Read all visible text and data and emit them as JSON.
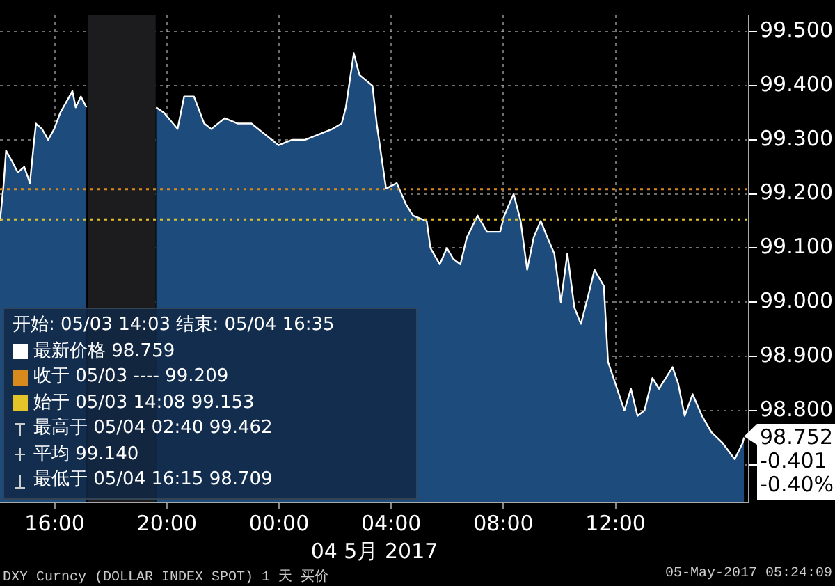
{
  "chart_data": {
    "type": "area",
    "xlabel": "04 5月 2017",
    "x": [
      "2017-05-03T14:03",
      "2017-05-03T14:11",
      "2017-05-03T14:16",
      "2017-05-03T14:29",
      "2017-05-03T14:41",
      "2017-05-03T14:55",
      "2017-05-03T15:07",
      "2017-05-03T15:15",
      "2017-05-03T15:20",
      "2017-05-03T15:33",
      "2017-05-03T15:46",
      "2017-05-03T15:59",
      "2017-05-03T16:12",
      "2017-05-03T16:25",
      "2017-05-03T16:38",
      "2017-05-03T16:45",
      "2017-05-03T16:56",
      "2017-05-03T17:08",
      "2017-05-03T18:00",
      "2017-05-03T19:37",
      "2017-05-03T19:54",
      "2017-05-03T20:23",
      "2017-05-03T20:37",
      "2017-05-03T20:58",
      "2017-05-03T21:20",
      "2017-05-03T21:35",
      "2017-05-03T22:04",
      "2017-05-03T22:32",
      "2017-05-03T23:01",
      "2017-05-03T23:30",
      "2017-05-03T23:59",
      "2017-05-04T00:28",
      "2017-05-04T00:56",
      "2017-05-04T01:25",
      "2017-05-04T01:54",
      "2017-05-04T02:14",
      "2017-05-04T02:23",
      "2017-05-04T02:40",
      "2017-05-04T02:52",
      "2017-05-04T03:06",
      "2017-05-04T03:20",
      "2017-05-04T03:29",
      "2017-05-04T03:49",
      "2017-05-04T04:12",
      "2017-05-04T04:32",
      "2017-05-04T04:47",
      "2017-05-04T05:16",
      "2017-05-04T05:24",
      "2017-05-04T05:44",
      "2017-05-04T05:59",
      "2017-05-04T06:13",
      "2017-05-04T06:28",
      "2017-05-04T06:42",
      "2017-05-04T07:05",
      "2017-05-04T07:25",
      "2017-05-04T07:39",
      "2017-05-04T07:53",
      "2017-05-04T08:02",
      "2017-05-04T08:22",
      "2017-05-04T08:37",
      "2017-05-04T08:51",
      "2017-05-04T09:05",
      "2017-05-04T09:20",
      "2017-05-04T09:34",
      "2017-05-04T09:49",
      "2017-05-04T10:03",
      "2017-05-04T10:17",
      "2017-05-04T10:32",
      "2017-05-04T10:46",
      "2017-05-04T11:01",
      "2017-05-04T11:15",
      "2017-05-04T11:35",
      "2017-05-04T11:44",
      "2017-05-04T12:19",
      "2017-05-04T12:33",
      "2017-05-04T12:47",
      "2017-05-04T13:02",
      "2017-05-04T13:19",
      "2017-05-04T13:33",
      "2017-05-04T14:02",
      "2017-05-04T14:14",
      "2017-05-04T14:28",
      "2017-05-04T14:45",
      "2017-05-04T15:05",
      "2017-05-04T15:25",
      "2017-05-04T15:49",
      "2017-05-04T16:15",
      "2017-05-04T16:32",
      "2017-05-04T16:35"
    ],
    "series": [
      {
        "color": "#1d4b7c",
        "values": [
          99.15,
          99.22,
          99.28,
          99.26,
          99.24,
          99.25,
          99.22,
          99.29,
          99.33,
          99.32,
          99.3,
          99.32,
          99.35,
          99.37,
          99.39,
          99.36,
          99.38,
          99.36,
          null,
          99.36,
          99.35,
          99.32,
          99.38,
          99.38,
          99.33,
          99.32,
          99.34,
          99.33,
          99.33,
          99.31,
          99.29,
          99.3,
          99.3,
          99.31,
          99.32,
          99.33,
          99.36,
          99.46,
          99.42,
          99.41,
          99.4,
          99.33,
          99.21,
          99.22,
          99.18,
          99.16,
          99.15,
          99.1,
          99.07,
          99.1,
          99.08,
          99.07,
          99.12,
          99.16,
          99.13,
          99.13,
          99.13,
          99.16,
          99.2,
          99.15,
          99.06,
          99.12,
          99.15,
          99.12,
          99.09,
          99.0,
          99.09,
          98.99,
          98.96,
          99.01,
          99.06,
          99.03,
          98.89,
          98.8,
          98.84,
          98.79,
          98.8,
          98.86,
          98.84,
          98.88,
          98.85,
          98.79,
          98.83,
          98.79,
          98.76,
          98.74,
          98.71,
          98.74,
          98.75
        ]
      }
    ],
    "xlim": [
      "2017-05-03T14:03",
      "2017-05-04T16:45"
    ],
    "xticks": [
      {
        "value": "2017-05-03T16:00",
        "label": "16:00"
      },
      {
        "value": "2017-05-03T20:00",
        "label": "20:00"
      },
      {
        "value": "2017-05-04T00:00",
        "label": "00:00"
      },
      {
        "value": "2017-05-04T04:00",
        "label": "04:00"
      },
      {
        "value": "2017-05-04T08:00",
        "label": "08:00"
      },
      {
        "value": "2017-05-04T12:00",
        "label": "12:00"
      }
    ],
    "ylim": [
      98.63,
      99.53
    ],
    "yticks": [
      {
        "value": 98.7,
        "label": null
      },
      {
        "value": 98.8,
        "label": "98.800"
      },
      {
        "value": 98.9,
        "label": "98.900"
      },
      {
        "value": 99.0,
        "label": "99.000"
      },
      {
        "value": 99.1,
        "label": "99.100"
      },
      {
        "value": 99.2,
        "label": "99.200"
      },
      {
        "value": 99.3,
        "label": "99.300"
      },
      {
        "value": 99.4,
        "label": "99.400"
      },
      {
        "value": 99.5,
        "label": "99.500"
      }
    ],
    "ref_lines": [
      {
        "axis": "y",
        "value": 99.209,
        "color": "#d98a1c",
        "line_style": "dotted"
      },
      {
        "axis": "y",
        "value": 99.153,
        "color": "#e3c52a",
        "line_style": "dotted"
      }
    ],
    "bands": [
      {
        "axis": "x",
        "from": "2017-05-03T17:12",
        "to": "2017-05-03T19:36",
        "color": "#1c1c1e"
      }
    ],
    "annotations": [
      {
        "text": "98.752",
        "x": "2017-05-04T16:35",
        "y": 98.752
      },
      "-0.401",
      "-0.40%",
      "开始: 05/03 14:03 结束: 05/04 16:35",
      "最新价格 98.759",
      "收于 05/03 ---- 99.209",
      "始于 05/03 14:08 99.153",
      "最高于 05/04 02:40 99.462",
      "平均 99.140",
      "最低于 05/04 16:15 98.709",
      "DXY Curncy (DOLLAR INDEX SPOT) 1 天  买价",
      "05-May-2017 05:24:09"
    ],
    "grid": true,
    "legend": false,
    "marker": "none",
    "line_style": "solid"
  }
}
